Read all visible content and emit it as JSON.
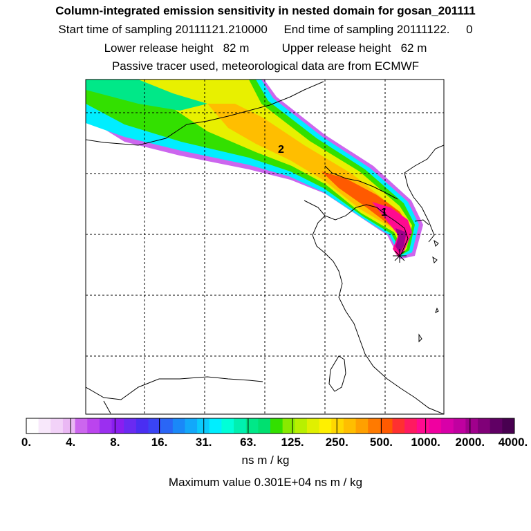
{
  "header": {
    "title": "Column-integrated emission sensitivity in nested domain for gosan_201111",
    "sampling_line": "Start time of sampling 20111121.210000     End time of sampling 20111122.     0",
    "release_line": "Lower release height   82 m          Upper release height   62 m",
    "tracer_line": "Passive tracer used, meteorological data are from ECMWF"
  },
  "map": {
    "cluster_labels": [
      "1",
      "2"
    ],
    "station_marker": "receptor-star-icon"
  },
  "colorbar": {
    "colors": [
      "#ffffff",
      "#f8e8fb",
      "#f2d2f8",
      "#eab8f4",
      "#cc66ee",
      "#bb44ee",
      "#9b2ff0",
      "#8a1ef0",
      "#6a2af2",
      "#4a2ef2",
      "#3a44f4",
      "#2a66f6",
      "#1a88f8",
      "#12a8fa",
      "#0acafc",
      "#00eeff",
      "#00ffd8",
      "#00f0b0",
      "#00e888",
      "#00e070",
      "#33e000",
      "#88ea00",
      "#b8f000",
      "#e0f000",
      "#fff000",
      "#ffd800",
      "#ffbe00",
      "#ffa000",
      "#ff7a00",
      "#ff5a00",
      "#ff3030",
      "#ff1a60",
      "#ff0a90",
      "#f000a0",
      "#d800a8",
      "#c000a0",
      "#a0008c",
      "#800078",
      "#600064",
      "#480050"
    ],
    "tick_labels": [
      "0.",
      "4.",
      "8.",
      "16.",
      "31.",
      "63.",
      "125.",
      "250.",
      "500.",
      "1000.",
      "2000.",
      "4000."
    ],
    "units": "ns m / kg",
    "maximum_text": "Maximum value  0.301E+04 ns m / kg"
  }
}
